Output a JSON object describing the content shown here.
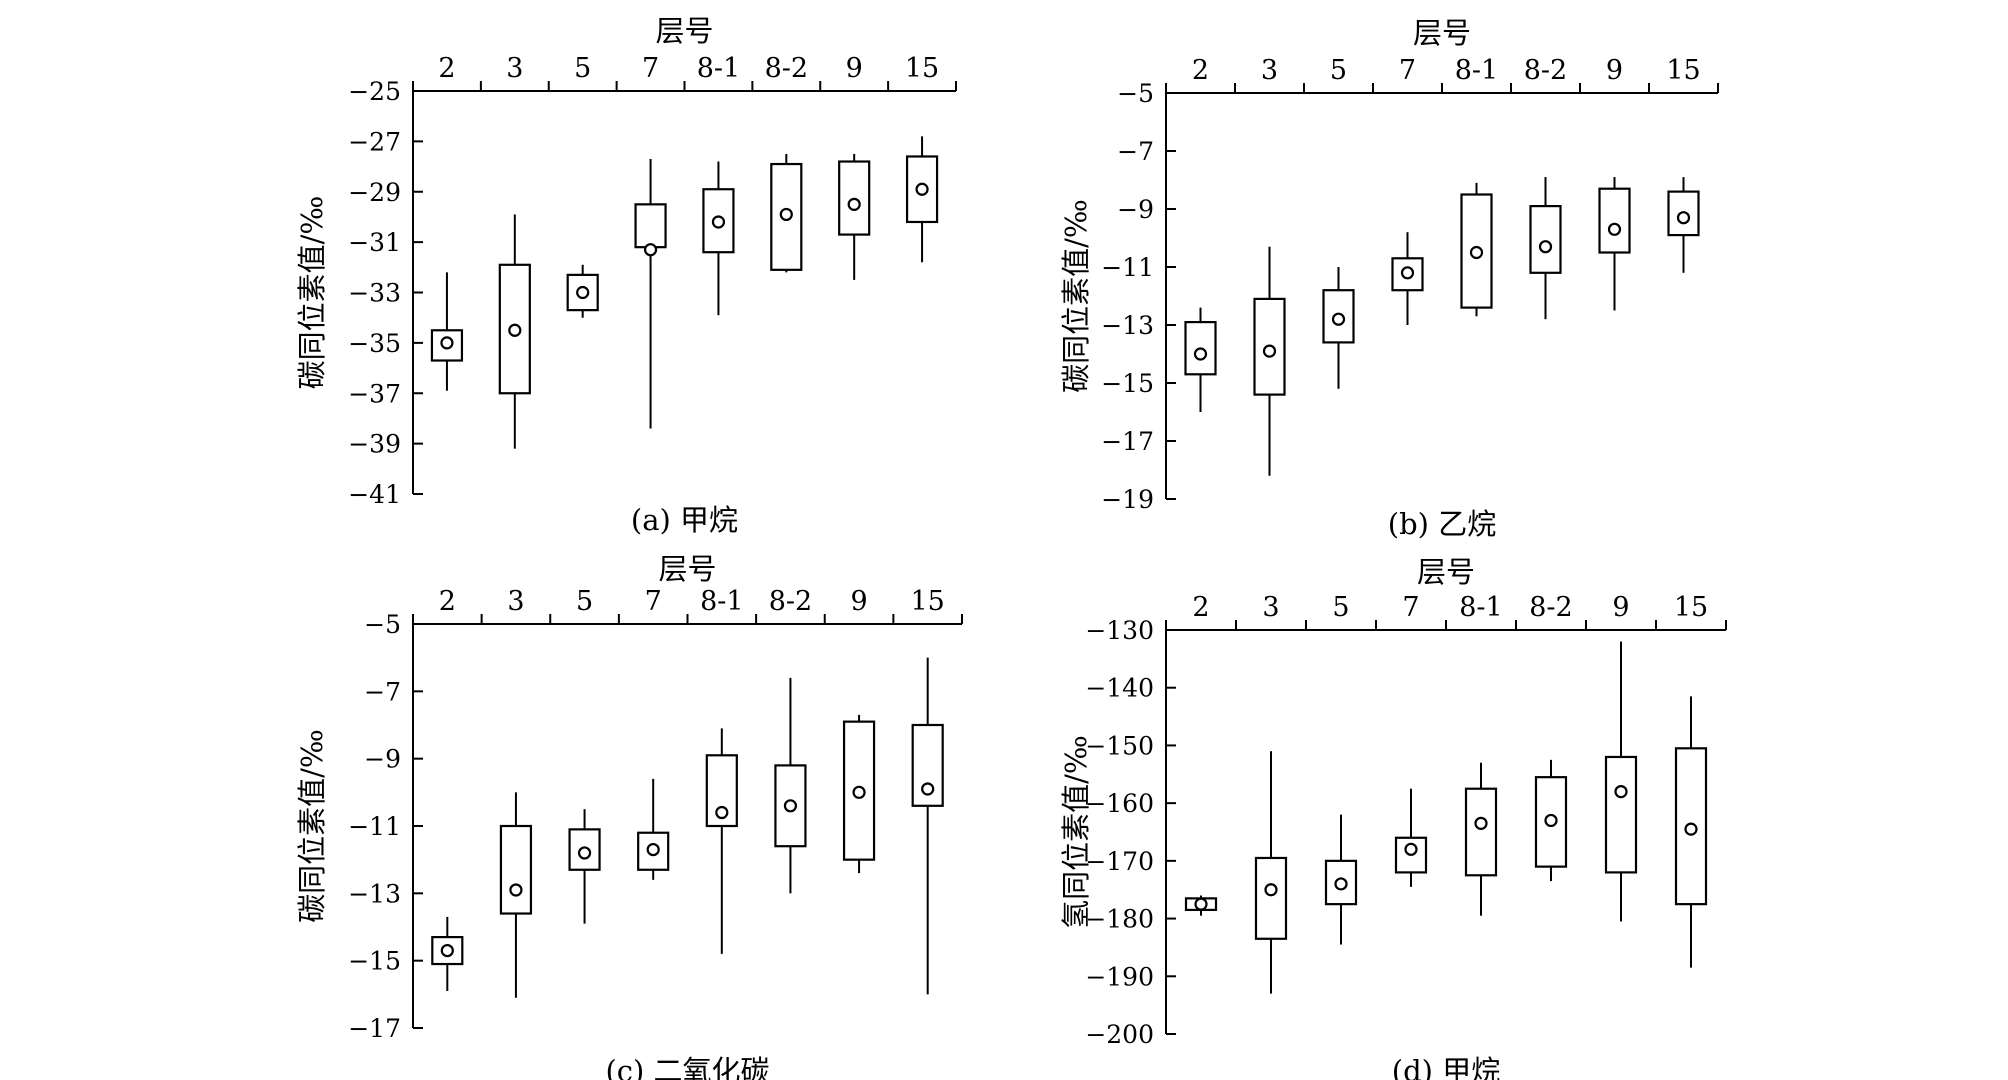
{
  "chart_data": [
    {
      "type": "box",
      "title": "(a) 甲烷",
      "xlabel": "层号",
      "ylabel": "碳同位素值/‰",
      "categories": [
        "2",
        "3",
        "5",
        "7",
        "8-1",
        "8-2",
        "9",
        "15"
      ],
      "ylim": [
        -41,
        -25
      ],
      "yticks": [
        -25,
        -27,
        -29,
        -31,
        -33,
        -35,
        -37,
        -39,
        -41
      ],
      "boxes": [
        {
          "min": -36.9,
          "q1": -35.7,
          "mean": -35.0,
          "q3": -34.5,
          "max": -32.2
        },
        {
          "min": -39.2,
          "q1": -37.0,
          "mean": -34.5,
          "q3": -31.9,
          "max": -29.9
        },
        {
          "min": -34.0,
          "q1": -33.7,
          "mean": -33.0,
          "q3": -32.3,
          "max": -31.9
        },
        {
          "min": -38.4,
          "q1": -31.2,
          "mean": -31.3,
          "q3": -29.5,
          "max": -27.7
        },
        {
          "min": -33.9,
          "q1": -31.4,
          "mean": -30.2,
          "q3": -28.9,
          "max": -27.8
        },
        {
          "min": -32.2,
          "q1": -32.1,
          "mean": -29.9,
          "q3": -27.9,
          "max": -27.5
        },
        {
          "min": -32.5,
          "q1": -30.7,
          "mean": -29.5,
          "q3": -27.8,
          "max": -27.5
        },
        {
          "min": -31.8,
          "q1": -30.2,
          "mean": -28.9,
          "q3": -27.6,
          "max": -26.8
        }
      ]
    },
    {
      "type": "box",
      "title": "(b) 乙烷",
      "xlabel": "层号",
      "ylabel": "碳同位素值/‰",
      "categories": [
        "2",
        "3",
        "5",
        "7",
        "8-1",
        "8-2",
        "9",
        "15"
      ],
      "ylim": [
        -19,
        -5
      ],
      "yticks": [
        -5,
        -7,
        -9,
        -11,
        -13,
        -15,
        -17,
        -19
      ],
      "boxes": [
        {
          "min": -16.0,
          "q1": -14.7,
          "mean": -14.0,
          "q3": -12.9,
          "max": -12.4
        },
        {
          "min": -18.2,
          "q1": -15.4,
          "mean": -13.9,
          "q3": -12.1,
          "max": -10.3
        },
        {
          "min": -15.2,
          "q1": -13.6,
          "mean": -12.8,
          "q3": -11.8,
          "max": -11.0
        },
        {
          "min": -13.0,
          "q1": -11.8,
          "mean": -11.2,
          "q3": -10.7,
          "max": -9.8
        },
        {
          "min": -12.7,
          "q1": -12.4,
          "mean": -10.5,
          "q3": -8.5,
          "max": -8.1
        },
        {
          "min": -12.8,
          "q1": -11.2,
          "mean": -10.3,
          "q3": -8.9,
          "max": -7.9
        },
        {
          "min": -12.5,
          "q1": -10.5,
          "mean": -9.7,
          "q3": -8.3,
          "max": -7.9
        },
        {
          "min": -11.2,
          "q1": -9.9,
          "mean": -9.3,
          "q3": -8.4,
          "max": -7.9
        }
      ]
    },
    {
      "type": "box",
      "title": "(c) 二氧化碳",
      "xlabel": "层号",
      "ylabel": "碳同位素值/‰",
      "categories": [
        "2",
        "3",
        "5",
        "7",
        "8-1",
        "8-2",
        "9",
        "15"
      ],
      "ylim": [
        -17,
        -5
      ],
      "yticks": [
        -5,
        -7,
        -9,
        -11,
        -13,
        -15,
        -17
      ],
      "boxes": [
        {
          "min": -15.9,
          "q1": -15.1,
          "mean": -14.7,
          "q3": -14.3,
          "max": -13.7
        },
        {
          "min": -16.1,
          "q1": -13.6,
          "mean": -12.9,
          "q3": -11.0,
          "max": -10.0
        },
        {
          "min": -13.9,
          "q1": -12.3,
          "mean": -11.8,
          "q3": -11.1,
          "max": -10.5
        },
        {
          "min": -12.6,
          "q1": -12.3,
          "mean": -11.7,
          "q3": -11.2,
          "max": -9.6
        },
        {
          "min": -14.8,
          "q1": -11.0,
          "mean": -10.6,
          "q3": -8.9,
          "max": -8.1
        },
        {
          "min": -13.0,
          "q1": -11.6,
          "mean": -10.4,
          "q3": -9.2,
          "max": -6.6
        },
        {
          "min": -12.4,
          "q1": -12.0,
          "mean": -10.0,
          "q3": -7.9,
          "max": -7.7
        },
        {
          "min": -16.0,
          "q1": -10.4,
          "mean": -9.9,
          "q3": -8.0,
          "max": -6.0
        }
      ]
    },
    {
      "type": "box",
      "title": "(d) 甲烷",
      "xlabel": "层号",
      "ylabel": "氢同位素值/‰",
      "categories": [
        "2",
        "3",
        "5",
        "7",
        "8-1",
        "8-2",
        "9",
        "15"
      ],
      "ylim": [
        -200,
        -130
      ],
      "yticks": [
        -130,
        -140,
        -150,
        -160,
        -170,
        -180,
        -190,
        -200
      ],
      "boxes": [
        {
          "min": -179.5,
          "q1": -178.5,
          "mean": -177.5,
          "q3": -176.5,
          "max": -176.0
        },
        {
          "min": -193.0,
          "q1": -183.5,
          "mean": -175.0,
          "q3": -169.5,
          "max": -151.0
        },
        {
          "min": -184.5,
          "q1": -177.5,
          "mean": -174.0,
          "q3": -170.0,
          "max": -162.0
        },
        {
          "min": -174.5,
          "q1": -172.0,
          "mean": -168.0,
          "q3": -166.0,
          "max": -157.5
        },
        {
          "min": -179.5,
          "q1": -172.5,
          "mean": -163.5,
          "q3": -157.5,
          "max": -153.0
        },
        {
          "min": -173.5,
          "q1": -171.0,
          "mean": -163.0,
          "q3": -155.5,
          "max": -152.5
        },
        {
          "min": -180.5,
          "q1": -172.0,
          "mean": -158.0,
          "q3": -152.0,
          "max": -132.0
        },
        {
          "min": -188.5,
          "q1": -177.5,
          "mean": -164.5,
          "q3": -150.5,
          "max": -141.5
        }
      ]
    }
  ]
}
